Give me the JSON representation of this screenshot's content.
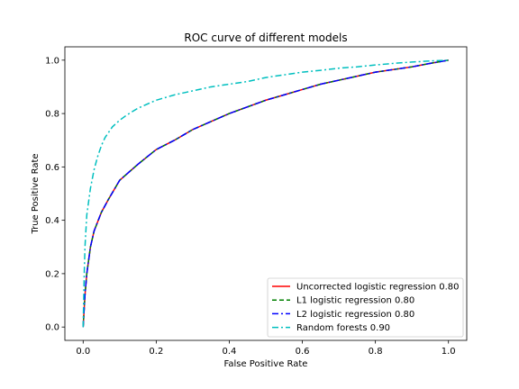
{
  "chart_data": {
    "type": "line",
    "title": "ROC curve of different models",
    "xlabel": "False Positive Rate",
    "ylabel": "True Positive Rate",
    "xlim": [
      -0.05,
      1.05
    ],
    "ylim": [
      -0.05,
      1.05
    ],
    "xticks": [
      0.0,
      0.2,
      0.4,
      0.6,
      0.8,
      1.0
    ],
    "yticks": [
      0.0,
      0.2,
      0.4,
      0.6,
      0.8,
      1.0
    ],
    "xtick_labels": [
      "0.0",
      "0.2",
      "0.4",
      "0.6",
      "0.8",
      "1.0"
    ],
    "ytick_labels": [
      "0.0",
      "0.2",
      "0.4",
      "0.6",
      "0.8",
      "1.0"
    ],
    "grid": false,
    "legend": "lower-right",
    "series": [
      {
        "name": "Uncorrected logistic regression 0.80",
        "color": "#ff0000",
        "dash": "solid",
        "x": [
          0.0,
          0.005,
          0.01,
          0.02,
          0.03,
          0.05,
          0.07,
          0.1,
          0.15,
          0.2,
          0.25,
          0.3,
          0.35,
          0.4,
          0.45,
          0.5,
          0.55,
          0.6,
          0.65,
          0.7,
          0.75,
          0.8,
          0.85,
          0.9,
          0.95,
          1.0
        ],
        "y": [
          0.0,
          0.12,
          0.2,
          0.3,
          0.36,
          0.43,
          0.48,
          0.55,
          0.61,
          0.665,
          0.7,
          0.74,
          0.77,
          0.8,
          0.825,
          0.85,
          0.87,
          0.89,
          0.91,
          0.925,
          0.94,
          0.955,
          0.965,
          0.975,
          0.988,
          1.0
        ]
      },
      {
        "name": "L1 logistic regression 0.80",
        "color": "#008000",
        "dash": "dashed",
        "x": [
          0.0,
          0.005,
          0.01,
          0.02,
          0.03,
          0.05,
          0.07,
          0.1,
          0.15,
          0.2,
          0.25,
          0.3,
          0.35,
          0.4,
          0.45,
          0.5,
          0.55,
          0.6,
          0.65,
          0.7,
          0.75,
          0.8,
          0.85,
          0.9,
          0.95,
          1.0
        ],
        "y": [
          0.0,
          0.12,
          0.2,
          0.3,
          0.36,
          0.43,
          0.48,
          0.55,
          0.61,
          0.665,
          0.7,
          0.74,
          0.77,
          0.8,
          0.825,
          0.85,
          0.87,
          0.89,
          0.91,
          0.925,
          0.94,
          0.955,
          0.965,
          0.975,
          0.988,
          1.0
        ]
      },
      {
        "name": "L2 logistic regression 0.80",
        "color": "#0000ff",
        "dash": "dashdot",
        "x": [
          0.0,
          0.005,
          0.01,
          0.02,
          0.03,
          0.05,
          0.07,
          0.1,
          0.15,
          0.2,
          0.25,
          0.3,
          0.35,
          0.4,
          0.45,
          0.5,
          0.55,
          0.6,
          0.65,
          0.7,
          0.75,
          0.8,
          0.85,
          0.9,
          0.95,
          1.0
        ],
        "y": [
          0.0,
          0.12,
          0.2,
          0.3,
          0.36,
          0.43,
          0.48,
          0.55,
          0.61,
          0.665,
          0.7,
          0.74,
          0.77,
          0.8,
          0.825,
          0.85,
          0.87,
          0.89,
          0.91,
          0.925,
          0.94,
          0.955,
          0.965,
          0.975,
          0.988,
          1.0
        ]
      },
      {
        "name": "Random forests 0.90",
        "color": "#00bfbf",
        "dash": "dashdot",
        "x": [
          0.0,
          0.003,
          0.005,
          0.01,
          0.02,
          0.03,
          0.04,
          0.05,
          0.06,
          0.08,
          0.1,
          0.12,
          0.15,
          0.2,
          0.25,
          0.3,
          0.35,
          0.4,
          0.45,
          0.5,
          0.55,
          0.6,
          0.65,
          0.7,
          0.75,
          0.8,
          0.85,
          0.9,
          0.95,
          1.0
        ],
        "y": [
          0.0,
          0.2,
          0.3,
          0.42,
          0.52,
          0.59,
          0.64,
          0.68,
          0.71,
          0.75,
          0.775,
          0.795,
          0.82,
          0.85,
          0.87,
          0.885,
          0.9,
          0.91,
          0.92,
          0.935,
          0.945,
          0.955,
          0.962,
          0.97,
          0.975,
          0.982,
          0.988,
          0.993,
          0.997,
          1.0
        ]
      }
    ]
  }
}
